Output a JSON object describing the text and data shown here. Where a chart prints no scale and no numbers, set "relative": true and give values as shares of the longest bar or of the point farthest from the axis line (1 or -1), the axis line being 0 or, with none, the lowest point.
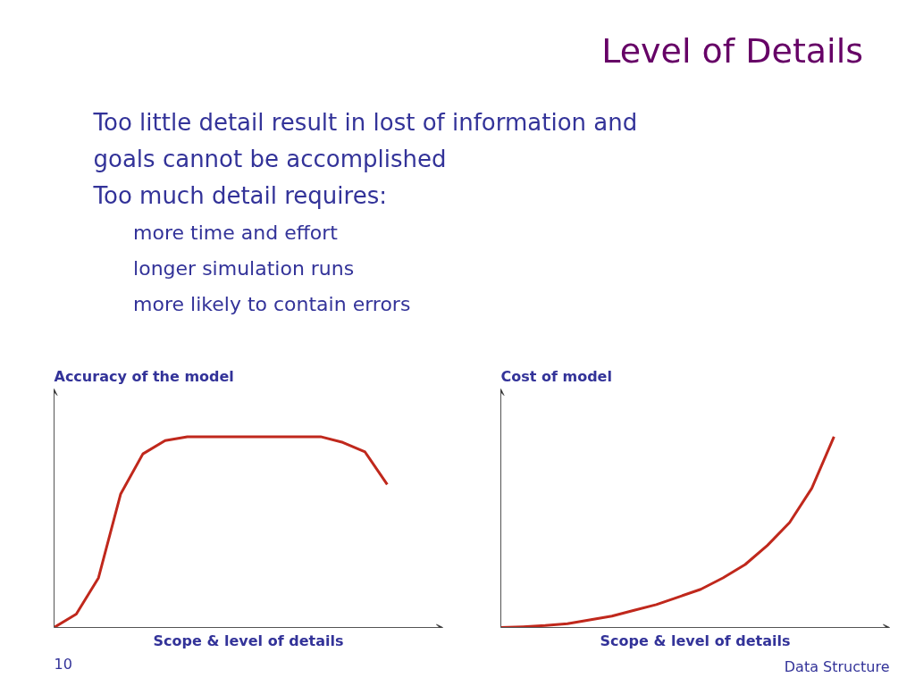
{
  "chart_data": [
    {
      "type": "other",
      "title": "Level of Details",
      "annotations": [
        "Too little detail result in lost of information and goals cannot be accomplished",
        "Too much detail requires:",
        "more time and effort",
        "longer simulation runs",
        "more likely to contain errors"
      ]
    },
    {
      "type": "line",
      "relative": true,
      "ylabel": "Accuracy of the model",
      "xlabel": "Scope & level of details",
      "categories": [
        null,
        null,
        null,
        null,
        null,
        null,
        null,
        null,
        null,
        null,
        null,
        null,
        null,
        null,
        null,
        null
      ],
      "series": [
        {
          "color": "#c0281c",
          "values": [
            0,
            0.07,
            0.26,
            0.7,
            0.91,
            0.98,
            1,
            1,
            1,
            1,
            1,
            1,
            1,
            0.97,
            0.92,
            0.75
          ]
        }
      ],
      "annotations": [
        "10"
      ]
    },
    {
      "type": "line",
      "relative": true,
      "ylabel": "Cost of model",
      "xlabel": "Scope & level of details",
      "categories": [
        null,
        null,
        null,
        null,
        null,
        null,
        null,
        null,
        null,
        null,
        null,
        null,
        null,
        null,
        null,
        null
      ],
      "series": [
        {
          "color": "#c0281c",
          "values": [
            0,
            0.004,
            0.01,
            0.02,
            0.04,
            0.06,
            0.09,
            0.12,
            0.16,
            0.2,
            0.26,
            0.33,
            0.43,
            0.55,
            0.73,
            1
          ]
        }
      ],
      "annotations": [
        "Data Structure"
      ]
    }
  ]
}
